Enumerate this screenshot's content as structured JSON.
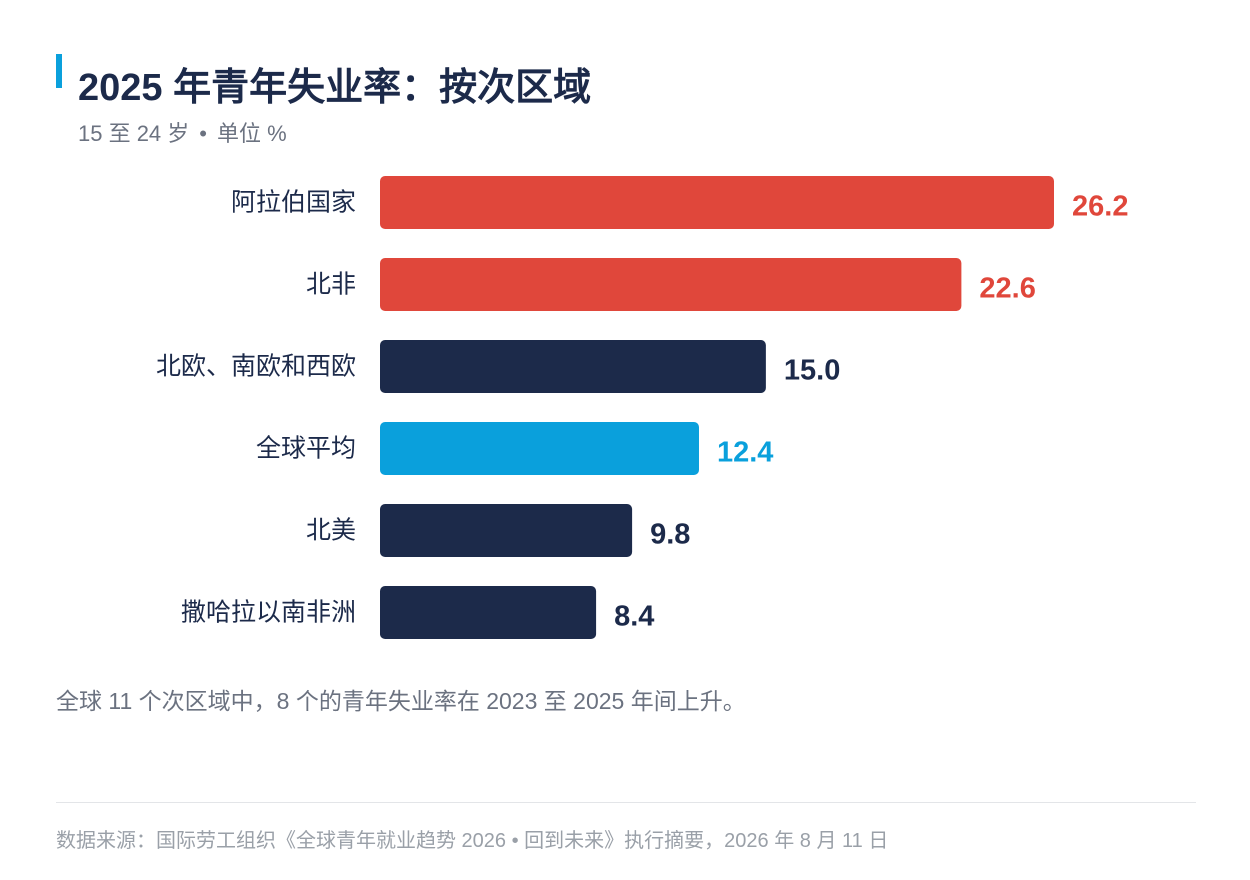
{
  "header": {
    "title": "2025 年青年失业率：按次区域",
    "subtitle_age": "15 至 24 岁",
    "subtitle_dot": "•",
    "subtitle_unit": "单位 %"
  },
  "colors": {
    "red": "#e0473b",
    "navy": "#1c2a4a",
    "blue": "#0aa0dc",
    "accent": "#0aa0dc"
  },
  "chart_data": {
    "type": "bar",
    "orientation": "horizontal",
    "categories": [
      "阿拉伯国家",
      "北非",
      "北欧、南欧和西欧",
      "全球平均",
      "北美",
      "撒哈拉以南非洲"
    ],
    "values": [
      26.2,
      22.6,
      15.0,
      12.4,
      9.8,
      8.4
    ],
    "value_labels": [
      "26.2",
      "22.6",
      "15.0",
      "12.4",
      "9.8",
      "8.4"
    ],
    "bar_colors": [
      "#e0473b",
      "#e0473b",
      "#1c2a4a",
      "#0aa0dc",
      "#1c2a4a",
      "#1c2a4a"
    ],
    "xlim": [
      0,
      26.2
    ],
    "grid": false,
    "legend": "none"
  },
  "note": "全球 11 个次区域中，8 个的青年失业率在 2023 至 2025 年间上升。",
  "source": "数据来源：国际劳工组织《全球青年就业趋势 2026 • 回到未来》执行摘要，2026 年 8 月 11 日"
}
